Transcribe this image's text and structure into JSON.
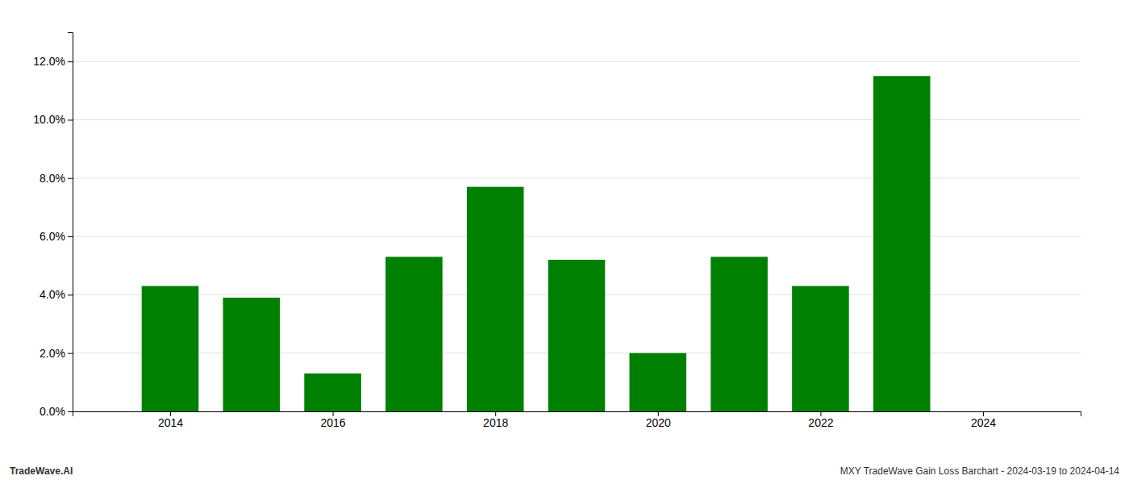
{
  "chart_data": {
    "type": "bar",
    "x": [
      2014,
      2015,
      2016,
      2017,
      2018,
      2019,
      2020,
      2021,
      2022,
      2023
    ],
    "values": [
      0.043,
      0.039,
      0.013,
      0.053,
      0.077,
      0.052,
      0.02,
      0.053,
      0.043,
      0.115
    ],
    "color": "#008000",
    "xlim": [
      2012.8,
      2025.2
    ],
    "xticks": [
      2014,
      2016,
      2018,
      2020,
      2022,
      2024
    ],
    "ylim": [
      0,
      0.13
    ],
    "yticks": [
      {
        "value": 0.0,
        "label": "0.0%"
      },
      {
        "value": 0.02,
        "label": "2.0%"
      },
      {
        "value": 0.04,
        "label": "4.0%"
      },
      {
        "value": 0.06,
        "label": "6.0%"
      },
      {
        "value": 0.08,
        "label": "8.0%"
      },
      {
        "value": 0.1,
        "label": "10.0%"
      },
      {
        "value": 0.12,
        "label": "12.0%"
      }
    ],
    "grid": true,
    "annotations": [
      "TradeWave.AI",
      "MXY TradeWave Gain Loss Barchart - 2024-03-19 to 2024-04-14"
    ]
  }
}
